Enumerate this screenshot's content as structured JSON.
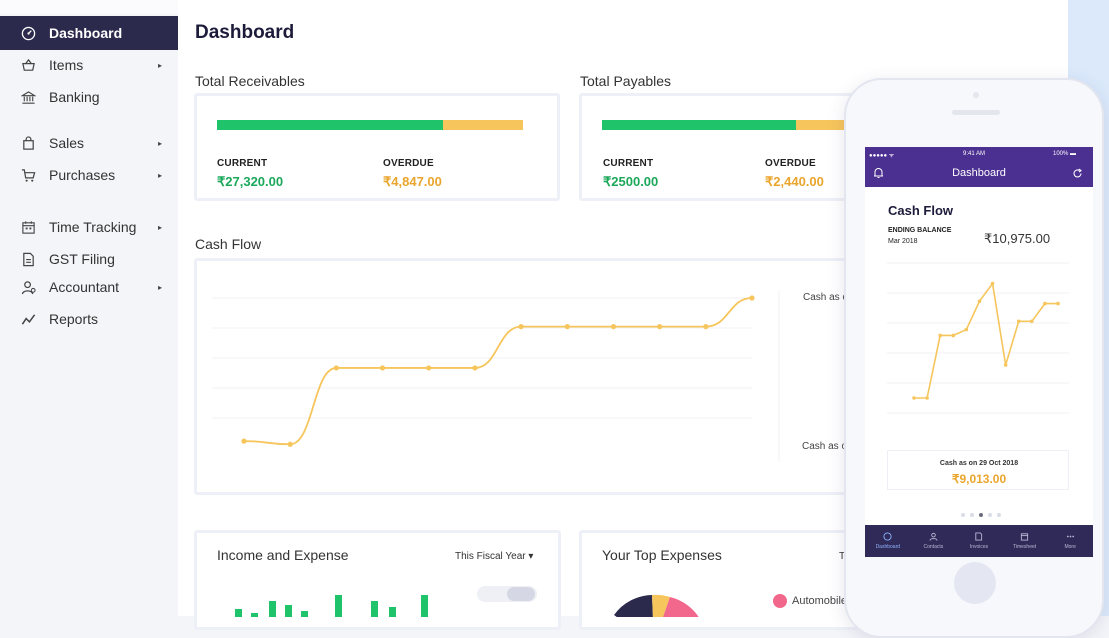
{
  "sidebar": {
    "items": [
      {
        "label": "Dashboard",
        "icon": "dashboard-icon",
        "arrow": false,
        "active": true
      },
      {
        "label": "Items",
        "icon": "basket-icon",
        "arrow": true
      },
      {
        "label": "Banking",
        "icon": "bank-icon",
        "arrow": false
      },
      {
        "label": "Sales",
        "icon": "bag-icon",
        "arrow": true
      },
      {
        "label": "Purchases",
        "icon": "cart-icon",
        "arrow": true
      },
      {
        "label": "Time Tracking",
        "icon": "calendar-icon",
        "arrow": true
      },
      {
        "label": "GST Filing",
        "icon": "document-icon",
        "arrow": false
      },
      {
        "label": "Accountant",
        "icon": "accountant-icon",
        "arrow": true
      },
      {
        "label": "Reports",
        "icon": "reports-icon",
        "arrow": false
      }
    ],
    "arrow_glyph": "▸"
  },
  "page": {
    "title": "Dashboard"
  },
  "receivables": {
    "title": "Total Receivables",
    "current_label": "CURRENT",
    "current_value": "₹27,320.00",
    "overdue_label": "OVERDUE",
    "overdue_value": "₹4,847.00",
    "current_fraction": 0.74
  },
  "payables": {
    "title": "Total Payables",
    "current_label": "CURRENT",
    "current_value": "₹2500.00",
    "overdue_label": "OVERDUE",
    "overdue_value": "₹2,440.00",
    "current_fraction": 0.8
  },
  "cashflow": {
    "title": "Cash Flow",
    "note_top": "Cash as o",
    "note_bottom": "Cash as o",
    "line_color": "#f6c55b",
    "points": [
      0.1,
      0.08,
      0.56,
      0.56,
      0.56,
      0.56,
      0.82,
      0.82,
      0.82,
      0.82,
      0.82,
      1.0
    ]
  },
  "income_expense": {
    "title": "Income and Expense",
    "period": "This Fiscal Year ▾"
  },
  "top_expenses": {
    "title": "Your Top Expenses",
    "period_stub": "T",
    "legend_first": "Automobile E"
  },
  "phone": {
    "status_left": "●●●●● ᯤ",
    "status_time": "9:41 AM",
    "status_right": "100% ▬",
    "header_title": "Dashboard",
    "card_title": "Cash Flow",
    "ending_balance_label": "ENDING BALANCE",
    "ending_balance_date": "Mar 2018",
    "ending_balance_value": "₹10,975.00",
    "cash_as_on_label": "Cash as on  29 Oct 2018",
    "cash_as_on_value": "₹9,013.00",
    "tabs": [
      "Dashboard",
      "Contacts",
      "Invoices",
      "Timesheet",
      "More"
    ],
    "points": [
      0.0,
      0.0,
      0.53,
      0.53,
      0.58,
      0.82,
      0.97,
      0.28,
      0.65,
      0.65,
      0.8,
      0.8
    ]
  },
  "colors": {
    "brand_dark": "#2c2a4c",
    "purple": "#4b2f91",
    "green": "#1ec36a",
    "yellow": "#f6c55b"
  }
}
